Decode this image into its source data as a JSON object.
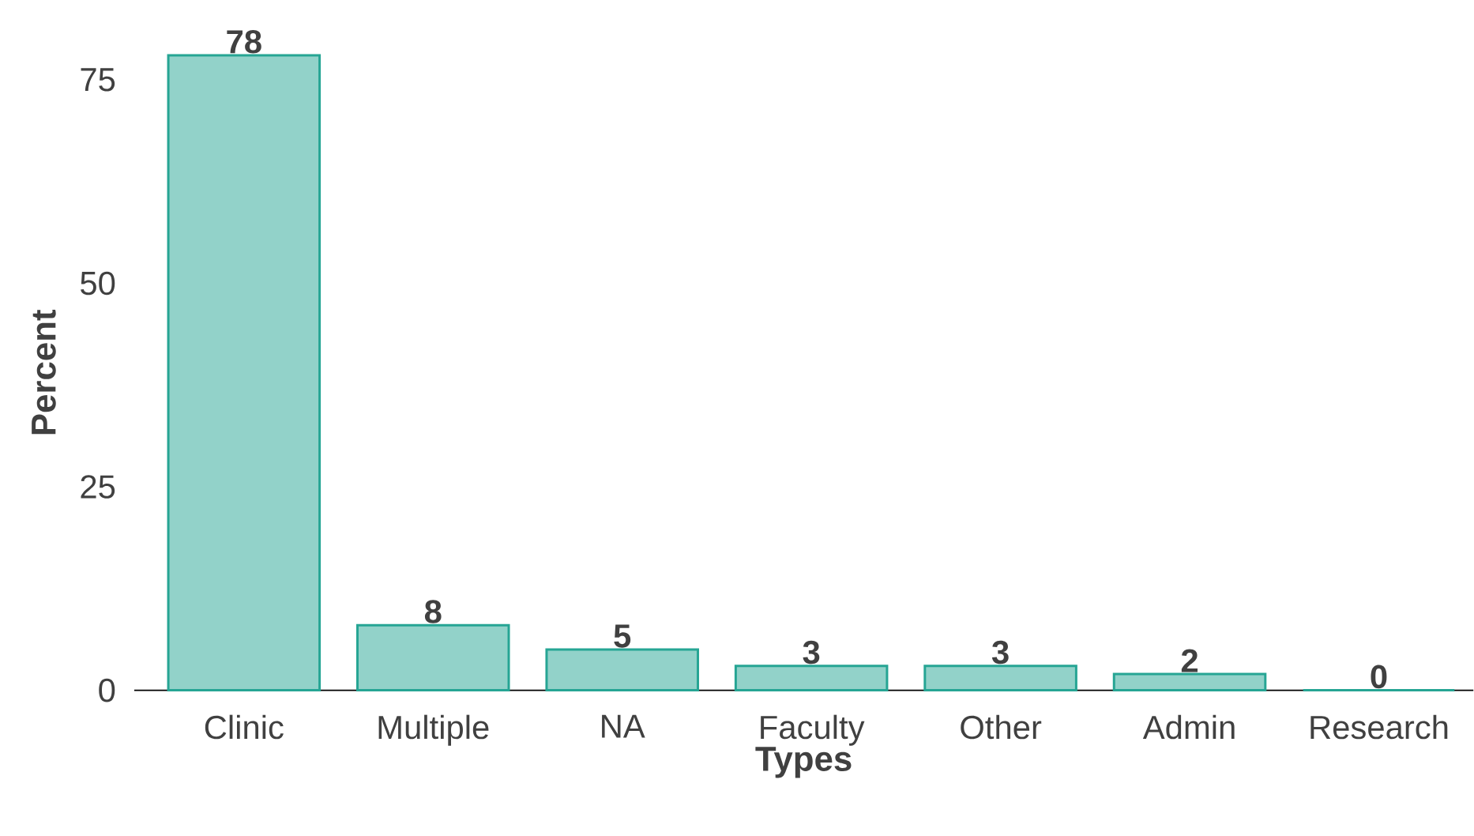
{
  "chart_data": {
    "type": "bar",
    "xlabel": "Types",
    "ylabel": "Percent",
    "categories": [
      "Clinic",
      "Multiple",
      "NA",
      "Faculty",
      "Other",
      "Admin",
      "Research"
    ],
    "values": [
      78,
      8,
      5,
      3,
      3,
      2,
      0
    ],
    "color": "#26a594",
    "ylim": [
      0,
      78
    ],
    "yticks": [
      0,
      25,
      50,
      75
    ],
    "data_labels": true
  }
}
